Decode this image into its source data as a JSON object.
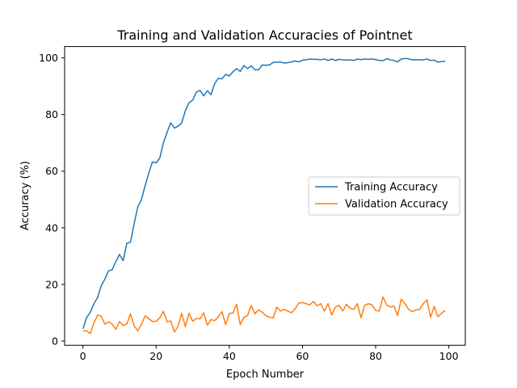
{
  "chart_data": {
    "type": "line",
    "title": "Training and Validation Accuracies of Pointnet",
    "xlabel": "Epoch Number",
    "ylabel": "Accuracy (%)",
    "xlim": [
      -5,
      104.5
    ],
    "ylim": [
      -1.5,
      104
    ],
    "xticks": [
      0,
      20,
      40,
      60,
      80,
      100
    ],
    "yticks": [
      0,
      20,
      40,
      60,
      80,
      100
    ],
    "grid": false,
    "legend_position": "center-right",
    "series": [
      {
        "name": "Training Accuracy",
        "color": "#1f77b4",
        "x": [
          0,
          1,
          2,
          3,
          4,
          5,
          6,
          7,
          8,
          9,
          10,
          11,
          12,
          13,
          14,
          15,
          16,
          17,
          18,
          19,
          20,
          21,
          22,
          23,
          24,
          25,
          26,
          27,
          28,
          29,
          30,
          31,
          32,
          33,
          34,
          35,
          36,
          37,
          38,
          39,
          40,
          41,
          42,
          43,
          44,
          45,
          46,
          47,
          48,
          49,
          50,
          51,
          52,
          53,
          54,
          55,
          56,
          57,
          58,
          59,
          60,
          61,
          62,
          63,
          64,
          65,
          66,
          67,
          68,
          69,
          70,
          71,
          72,
          73,
          74,
          75,
          76,
          77,
          78,
          79,
          80,
          81,
          82,
          83,
          84,
          85,
          86,
          87,
          88,
          89,
          90,
          91,
          92,
          93,
          94,
          95,
          96,
          97,
          98,
          99
        ],
        "values": [
          4.3,
          8.3,
          10.1,
          13.2,
          15.4,
          19.5,
          21.9,
          24.8,
          25.2,
          28.1,
          30.6,
          28.4,
          34.5,
          34.9,
          41.5,
          47.4,
          50.0,
          54.9,
          59.3,
          63.3,
          62.9,
          64.6,
          70.0,
          73.7,
          77.1,
          75.2,
          75.9,
          77.0,
          81.4,
          84.2,
          85.1,
          87.9,
          88.5,
          86.6,
          88.4,
          87.0,
          90.9,
          92.8,
          92.6,
          94.2,
          93.6,
          95.1,
          96.2,
          95.2,
          97.3,
          96.2,
          97.2,
          95.8,
          95.8,
          97.5,
          97.4,
          97.5,
          98.4,
          98.5,
          98.5,
          98.2,
          98.3,
          98.6,
          98.9,
          98.6,
          99.2,
          99.3,
          99.6,
          99.5,
          99.5,
          99.3,
          99.6,
          99.1,
          99.6,
          99.1,
          99.5,
          99.3,
          99.2,
          99.3,
          99.1,
          99.6,
          99.4,
          99.6,
          99.5,
          99.6,
          99.4,
          99.1,
          99.0,
          99.7,
          99.3,
          99.1,
          98.6,
          99.6,
          99.8,
          99.7,
          99.3,
          99.4,
          99.3,
          99.3,
          99.6,
          99.1,
          99.2,
          98.5,
          98.7,
          98.8
        ]
      },
      {
        "name": "Validation Accuracy",
        "color": "#ff7f0e",
        "x": [
          0,
          1,
          2,
          3,
          4,
          5,
          6,
          7,
          8,
          9,
          10,
          11,
          12,
          13,
          14,
          15,
          16,
          17,
          18,
          19,
          20,
          21,
          22,
          23,
          24,
          25,
          26,
          27,
          28,
          29,
          30,
          31,
          32,
          33,
          34,
          35,
          36,
          37,
          38,
          39,
          40,
          41,
          42,
          43,
          44,
          45,
          46,
          47,
          48,
          49,
          50,
          51,
          52,
          53,
          54,
          55,
          56,
          57,
          58,
          59,
          60,
          61,
          62,
          63,
          64,
          65,
          66,
          67,
          68,
          69,
          70,
          71,
          72,
          73,
          74,
          75,
          76,
          77,
          78,
          79,
          80,
          81,
          82,
          83,
          84,
          85,
          86,
          87,
          88,
          89,
          90,
          91,
          92,
          93,
          94,
          95,
          96,
          97,
          98,
          99
        ],
        "values": [
          3.5,
          3.7,
          2.6,
          6.4,
          9.2,
          8.8,
          6.0,
          6.8,
          6.0,
          4.2,
          6.9,
          5.5,
          6.0,
          9.6,
          5.4,
          3.6,
          6.0,
          8.9,
          7.9,
          6.9,
          7.0,
          8.2,
          10.5,
          6.8,
          7.1,
          3.2,
          5.2,
          9.8,
          5.1,
          9.8,
          7.0,
          8.0,
          7.8,
          10.0,
          5.6,
          7.6,
          7.2,
          8.6,
          10.4,
          5.8,
          9.8,
          9.9,
          13.0,
          5.8,
          8.4,
          9.0,
          12.6,
          9.6,
          11.0,
          10.2,
          9.0,
          8.4,
          8.2,
          12.0,
          10.6,
          11.2,
          10.6,
          10.0,
          11.4,
          13.4,
          13.6,
          13.2,
          12.8,
          14.0,
          12.4,
          13.2,
          10.6,
          13.2,
          9.2,
          12.0,
          12.6,
          10.6,
          13.0,
          11.6,
          11.2,
          13.2,
          8.2,
          12.6,
          13.2,
          12.8,
          10.8,
          10.6,
          15.6,
          12.8,
          12.0,
          12.4,
          9.0,
          14.8,
          13.2,
          11.2,
          10.4,
          11.0,
          11.2,
          13.2,
          14.6,
          8.4,
          12.2,
          8.6,
          9.8,
          10.8
        ]
      }
    ]
  }
}
